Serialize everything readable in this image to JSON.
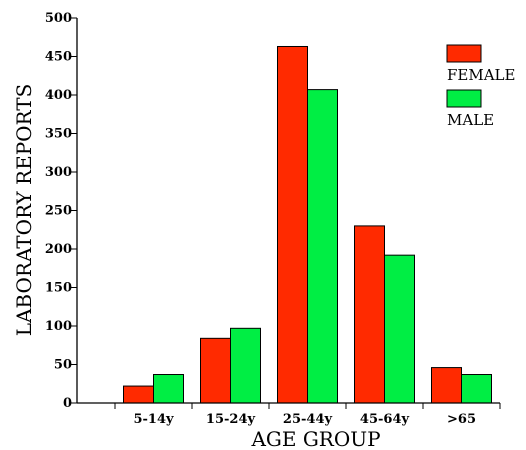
{
  "chart_data": {
    "type": "bar",
    "title": "",
    "xlabel": "AGE GROUP",
    "ylabel": "LABORATORY REPORTS",
    "categories": [
      "5-14y",
      "15-24y",
      "25-44y",
      "45-64y",
      ">65"
    ],
    "series": [
      {
        "name": "FEMALE",
        "color": "#ff2a00",
        "values": [
          22,
          84,
          463,
          230,
          46
        ]
      },
      {
        "name": "MALE",
        "color": "#00ee44",
        "values": [
          37,
          97,
          407,
          192,
          37
        ]
      }
    ],
    "ylim": [
      0,
      500
    ],
    "yticks": [
      0,
      50,
      100,
      150,
      200,
      250,
      300,
      350,
      400,
      450,
      500
    ],
    "grid": false,
    "legend_position": "top-right"
  }
}
